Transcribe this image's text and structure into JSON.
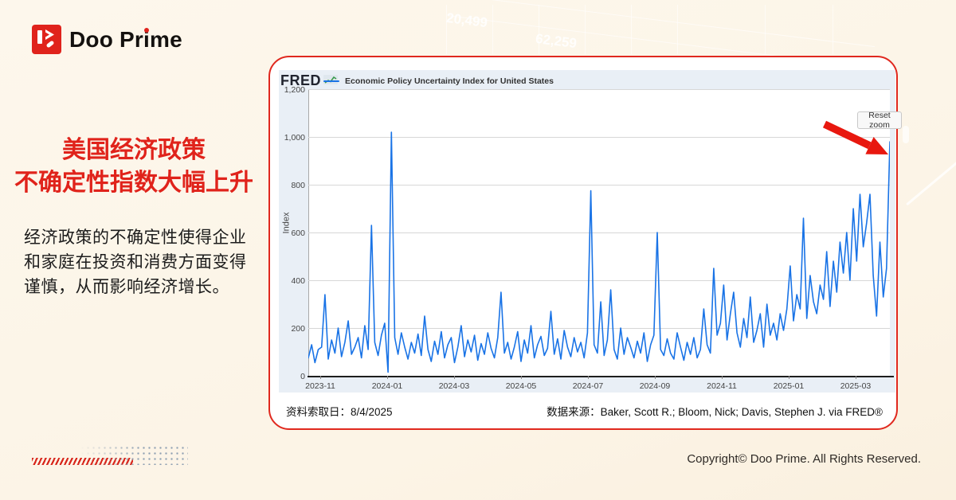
{
  "brand": {
    "logo_parts": {
      "pre": "Doo Pr",
      "i_char": "i",
      "post": "me"
    },
    "logo_full": "Doo Prime"
  },
  "headline": {
    "line1": "美国经济政策",
    "line2": "不确定性指数大幅上升"
  },
  "description": "经济政策的不确定性使得企业和家庭在投资和消费方面变得谨慎，从而影响经济增长。",
  "card": {
    "fred_logo": "FRED",
    "legend_label": "Economic Policy Uncertainty Index for United States",
    "reset_zoom_label": "Reset zoom",
    "retrieval_label": "资料索取日：8/4/2025",
    "source_label": "数据来源：Baker, Scott R.; Bloom, Nick; Davis, Stephen J. via FRED®"
  },
  "watermark": {
    "num1": "20,499",
    "num2": "62,259"
  },
  "footer": {
    "copyright": "Copyright© Doo Prime. All Rights Reserved."
  },
  "colors": {
    "brand_red": "#e0231c",
    "card_border_red": "#e0281e",
    "line_blue": "#1973e6",
    "widget_bg": "#e9eff6",
    "page_bg": "#fdf6ea"
  },
  "chart_data": {
    "type": "line",
    "title": "Economic Policy Uncertainty Index for United States",
    "ylabel": "Index",
    "ylim": [
      0,
      1200
    ],
    "yticks": [
      0,
      200,
      400,
      600,
      800,
      1000,
      1200
    ],
    "xticks": [
      "2023-11",
      "2024-01",
      "2024-03",
      "2024-05",
      "2024-07",
      "2024-09",
      "2024-11",
      "2025-01",
      "2025-03"
    ],
    "x_range": [
      "2023-10-27",
      "2025-04-10"
    ],
    "grid": true,
    "legend_position": "top-left",
    "series": [
      {
        "name": "Economic Policy Uncertainty Index for United States",
        "color": "#1973e6",
        "values": [
          75,
          130,
          55,
          110,
          120,
          340,
          70,
          150,
          95,
          200,
          80,
          140,
          230,
          90,
          120,
          160,
          75,
          210,
          110,
          630,
          140,
          85,
          170,
          220,
          15,
          1020,
          160,
          90,
          180,
          120,
          70,
          140,
          95,
          175,
          85,
          250,
          110,
          60,
          145,
          90,
          185,
          75,
          130,
          160,
          55,
          120,
          210,
          80,
          150,
          100,
          170,
          65,
          135,
          90,
          180,
          115,
          75,
          160,
          350,
          95,
          140,
          70,
          120,
          185,
          60,
          150,
          95,
          210,
          75,
          130,
          165,
          85,
          115,
          270,
          90,
          155,
          70,
          190,
          120,
          80,
          160,
          100,
          140,
          75,
          180,
          775,
          130,
          95,
          310,
          85,
          150,
          360,
          110,
          70,
          200,
          90,
          160,
          120,
          75,
          145,
          95,
          180,
          60,
          130,
          170,
          600,
          110,
          85,
          155,
          95,
          70,
          180,
          120,
          65,
          140,
          90,
          160,
          75,
          110,
          280,
          130,
          95,
          450,
          170,
          220,
          380,
          150,
          260,
          350,
          180,
          120,
          240,
          160,
          330,
          140,
          190,
          260,
          120,
          300,
          170,
          220,
          150,
          260,
          190,
          280,
          460,
          230,
          340,
          280,
          660,
          240,
          420,
          310,
          260,
          380,
          320,
          520,
          290,
          480,
          350,
          560,
          430,
          600,
          400,
          700,
          480,
          760,
          540,
          640,
          760,
          420,
          250,
          560,
          330,
          450,
          980
        ]
      }
    ]
  }
}
